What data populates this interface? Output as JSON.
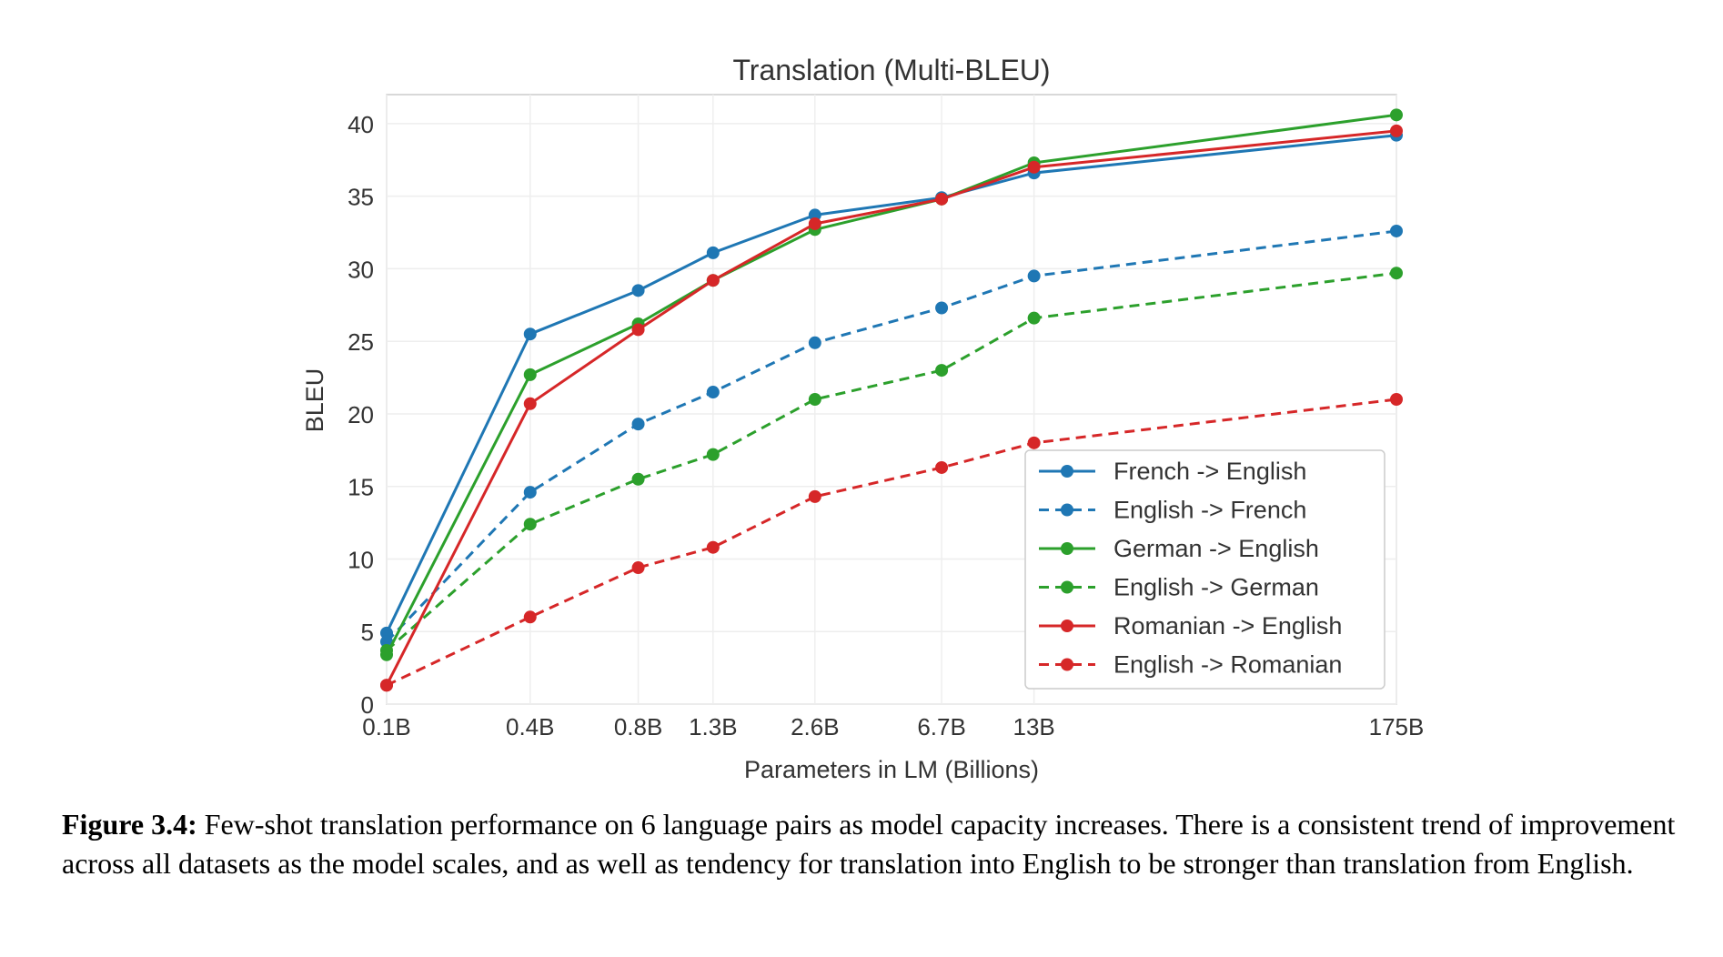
{
  "chart_data": {
    "type": "line",
    "title": "Translation (Multi-BLEU)",
    "xlabel": "Parameters in LM (Billions)",
    "ylabel": "BLEU",
    "x_scale": "log",
    "categories": [
      "0.1B",
      "0.4B",
      "0.8B",
      "1.3B",
      "2.6B",
      "6.7B",
      "13B",
      "175B"
    ],
    "x": [
      0.125,
      0.35,
      0.76,
      1.3,
      2.7,
      6.7,
      13,
      175
    ],
    "ylim": [
      0,
      42
    ],
    "yticks": [
      0,
      5,
      10,
      15,
      20,
      25,
      30,
      35,
      40
    ],
    "grid": true,
    "legend_position": "lower-right",
    "series": [
      {
        "name": "French -> English",
        "color": "#1f77b4",
        "dashed": false,
        "values": [
          4.9,
          25.5,
          28.5,
          31.1,
          33.7,
          34.9,
          36.6,
          39.2
        ]
      },
      {
        "name": "English -> French",
        "color": "#1f77b4",
        "dashed": true,
        "values": [
          4.3,
          14.6,
          19.3,
          21.5,
          24.9,
          27.3,
          29.5,
          32.6
        ]
      },
      {
        "name": "German -> English",
        "color": "#2ca02c",
        "dashed": false,
        "values": [
          3.4,
          22.7,
          26.2,
          29.2,
          32.7,
          34.8,
          37.3,
          40.6
        ]
      },
      {
        "name": "English -> German",
        "color": "#2ca02c",
        "dashed": true,
        "values": [
          3.7,
          12.4,
          15.5,
          17.2,
          21.0,
          23.0,
          26.6,
          29.7
        ]
      },
      {
        "name": "Romanian -> English",
        "color": "#d62728",
        "dashed": false,
        "values": [
          1.3,
          20.7,
          25.8,
          29.2,
          33.1,
          34.8,
          37.0,
          39.5
        ]
      },
      {
        "name": "English -> Romanian",
        "color": "#d62728",
        "dashed": true,
        "values": [
          1.3,
          6.0,
          9.4,
          10.8,
          14.3,
          16.3,
          18.0,
          21.0
        ]
      }
    ]
  },
  "caption": {
    "label": "Figure 3.4:",
    "text": " Few-shot translation performance on 6 language pairs as model capacity increases. There is a consistent trend of improvement across all datasets as the model scales, and as well as tendency for translation into English to be stronger than translation from English."
  }
}
